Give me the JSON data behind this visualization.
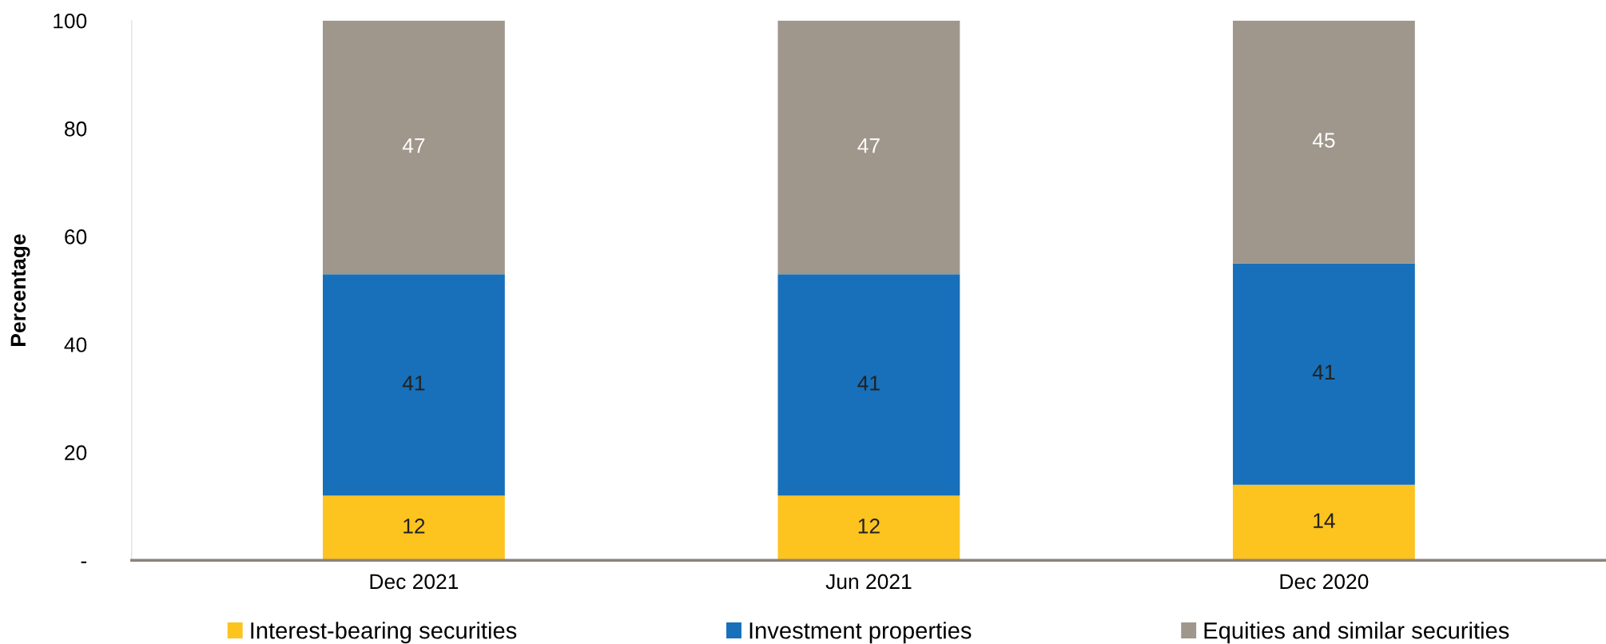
{
  "chart_data": {
    "type": "bar",
    "stacked": true,
    "ylabel": "Percentage",
    "categories": [
      "Dec 2021",
      "Jun 2021",
      "Dec 2020"
    ],
    "series": [
      {
        "name": "Interest-bearing securities",
        "color": "#fdc31f",
        "values": [
          12,
          12,
          14
        ]
      },
      {
        "name": "Investment properties",
        "color": "#1770b9",
        "values": [
          41,
          41,
          41
        ]
      },
      {
        "name": "Equities and similar securities",
        "color": "#9f968c",
        "values": [
          47,
          47,
          45
        ]
      }
    ],
    "ylim": [
      0,
      100
    ],
    "yticks": [
      {
        "value": 0,
        "label": "-"
      },
      20,
      40,
      60,
      80,
      100
    ],
    "data_labels": true,
    "grid": false,
    "legend": "bottom"
  }
}
